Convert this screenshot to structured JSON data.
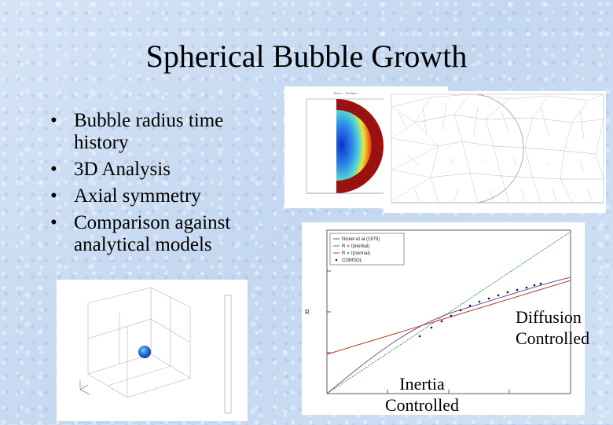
{
  "slide": {
    "title": "Spherical Bubble Growth",
    "bullets": [
      "Bubble radius time history",
      "3D Analysis",
      "Axial symmetry",
      "Comparison against analytical models"
    ],
    "bullet_glyph": "•"
  },
  "annotations": {
    "diffusion": [
      "Diffusion",
      "Controlled"
    ],
    "inertia": [
      "Inertia",
      "Controlled"
    ]
  },
  "plot": {
    "y_axis_symbol": "R",
    "legend": [
      "Nickel et al (1975)",
      "R ∝ t(inertial)",
      "R ∝ t(normal)",
      "COMSOL"
    ]
  },
  "colors": {
    "inertia_line": "#2e9a2e",
    "diffusion_line": "#c0392b",
    "scriven_line": "#6b4fa0",
    "comsol_points": "#111111",
    "contour_outer": "#9b1010"
  }
}
